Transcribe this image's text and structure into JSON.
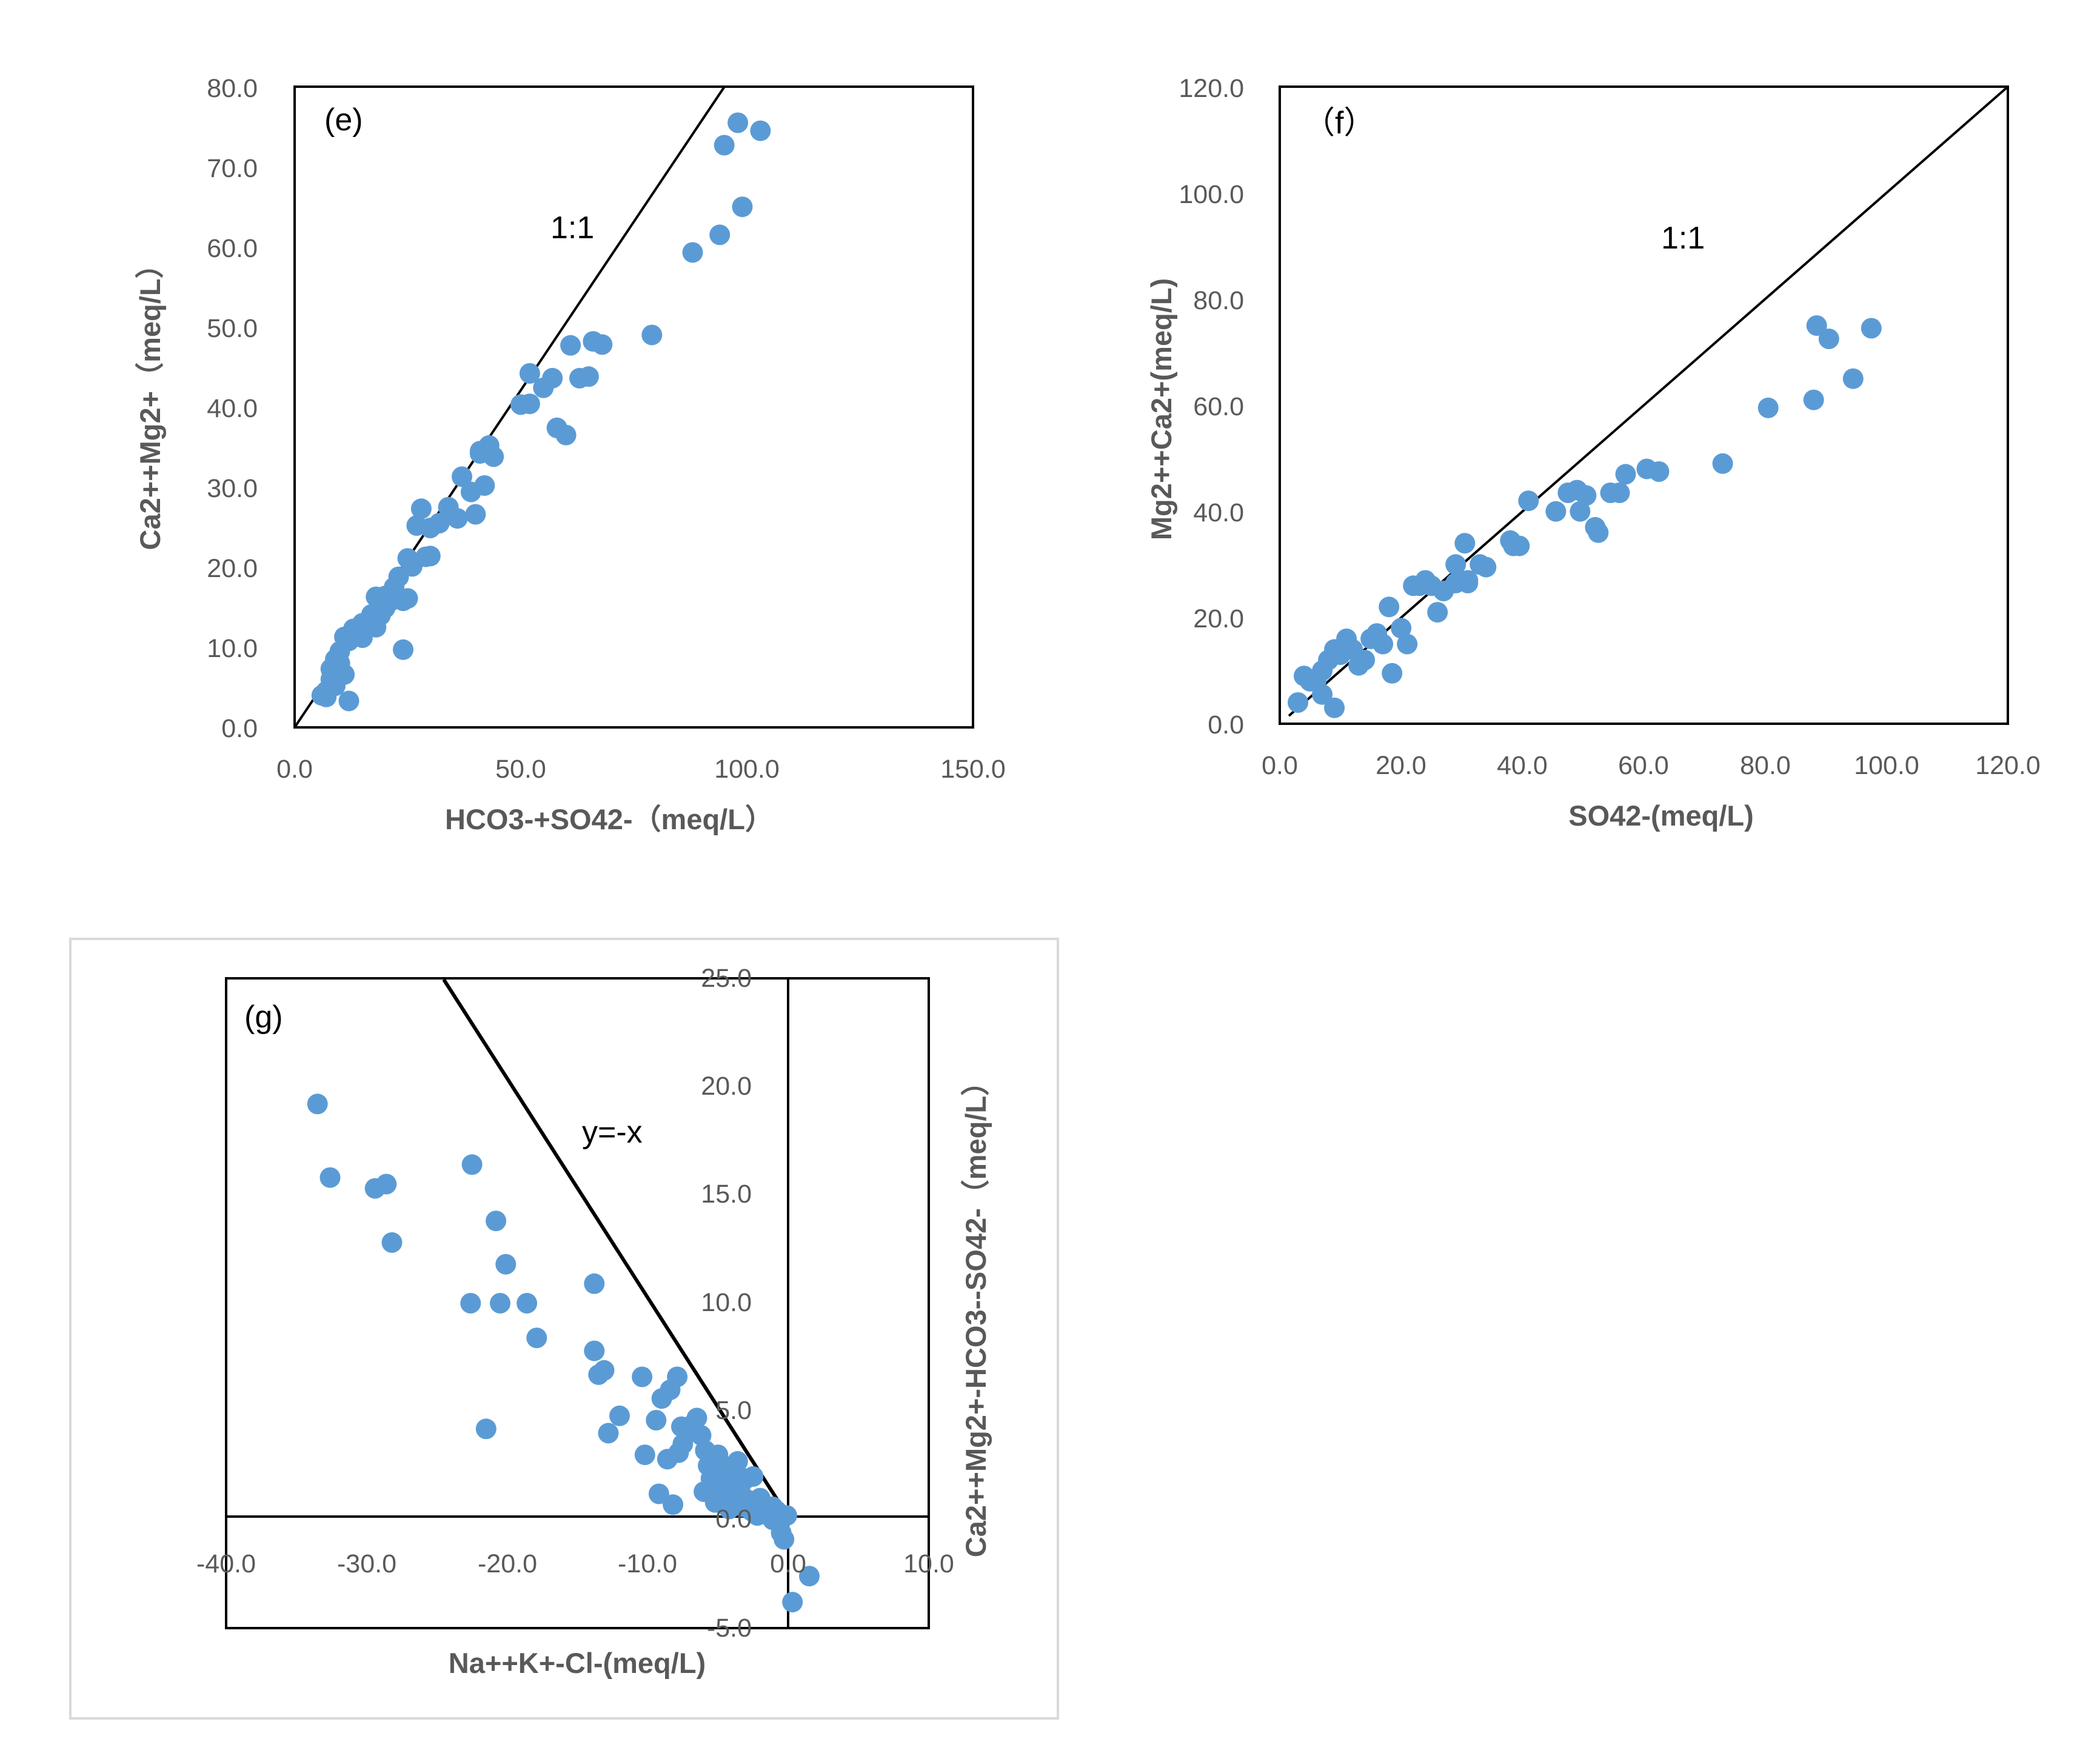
{
  "colors": {
    "point": "#5b9bd5",
    "axis": "#000000",
    "tick_text": "#595959",
    "frame": "#d9d9d9"
  },
  "chart_data": [
    {
      "id": "e",
      "type": "scatter",
      "panel_label": "(e)",
      "xlabel": "HCO3-+SO42-（meq/L）",
      "ylabel": "Ca2++Mg2+（meq/L）",
      "xlim": [
        0,
        150
      ],
      "ylim": [
        0,
        80
      ],
      "xticks": [
        "0.0",
        "50.0",
        "100.0",
        "150.0"
      ],
      "yticks": [
        "0.0",
        "10.0",
        "20.0",
        "30.0",
        "40.0",
        "50.0",
        "60.0",
        "70.0",
        "80.0"
      ],
      "reference_line": {
        "label": "1:1",
        "x": [
          0,
          95
        ],
        "y": [
          0,
          80
        ]
      },
      "x": [
        98,
        103,
        95,
        99,
        94,
        88,
        79,
        61,
        66,
        68,
        52,
        55,
        57,
        58,
        63,
        65,
        58,
        60,
        50,
        52,
        41,
        43,
        44,
        37,
        39,
        42,
        40,
        41,
        36,
        34,
        30,
        32,
        28,
        29,
        30,
        27,
        25,
        26,
        24,
        22,
        23,
        20,
        18,
        19,
        17,
        15,
        14,
        13,
        12,
        10,
        11,
        9,
        8,
        8,
        7,
        6,
        7,
        9,
        12,
        24,
        15,
        18,
        21,
        19,
        10,
        11,
        25,
        13,
        16,
        20,
        22
      ],
      "y": [
        75.5,
        74.5,
        72.7,
        65,
        61.5,
        59.3,
        49,
        47.7,
        48.2,
        47.8,
        44.2,
        42.4,
        43.6,
        37.4,
        43.6,
        43.8,
        37.4,
        36.5,
        40.3,
        40.4,
        34.2,
        35.2,
        33.8,
        31.3,
        29.4,
        30.2,
        26.6,
        34.5,
        26.1,
        27.5,
        24.9,
        25.5,
        27.3,
        21.3,
        21.4,
        25.2,
        21.1,
        20.1,
        15.8,
        17.5,
        18.8,
        16.4,
        16.3,
        15.3,
        14.1,
        13,
        12.2,
        11.4,
        10.8,
        9.5,
        11.3,
        8.5,
        7.3,
        6,
        4.5,
        4,
        3.8,
        5.2,
        3.3,
        9.7,
        11.2,
        12.5,
        15.7,
        14,
        8,
        6.6,
        16.1,
        12.3,
        13.2,
        14.9,
        17
      ]
    },
    {
      "id": "f",
      "type": "scatter",
      "panel_label": "（f）",
      "xlabel": "SO42-(meq/L)",
      "ylabel": "Mg2++Ca2+(meq/L)",
      "xlim": [
        0,
        120
      ],
      "ylim": [
        0,
        120
      ],
      "xticks": [
        "0.0",
        "20.0",
        "40.0",
        "60.0",
        "80.0",
        "100.0",
        "120.0"
      ],
      "yticks": [
        "0.0",
        "20.0",
        "40.0",
        "60.0",
        "80.0",
        "100.0",
        "120.0"
      ],
      "reference_line": {
        "label": "1:1",
        "x": [
          1.5,
          120
        ],
        "y": [
          1.5,
          120
        ]
      },
      "x": [
        88.5,
        97.5,
        90.5,
        94.5,
        88,
        80.5,
        73,
        60.5,
        62.5,
        57,
        41,
        47.5,
        49,
        50.5,
        45.5,
        49.5,
        52,
        52.5,
        54.5,
        56,
        38,
        39.5,
        38.5,
        30.5,
        33,
        34,
        29,
        31,
        27,
        24,
        22,
        23,
        21,
        26,
        25,
        18,
        18.5,
        16,
        15,
        14,
        12,
        11,
        10,
        9,
        8,
        7,
        6,
        5,
        4,
        3,
        9,
        7,
        20,
        17,
        13,
        29,
        31
      ],
      "y": [
        75,
        74.5,
        72.5,
        65,
        61,
        59.5,
        49,
        48,
        47.5,
        47,
        42,
        43.5,
        44,
        43,
        40,
        40,
        37,
        36,
        43.5,
        43.5,
        34.5,
        33.5,
        33.5,
        34,
        30,
        29.5,
        30,
        26.5,
        25,
        27,
        26,
        26,
        15,
        21,
        26,
        22,
        9.5,
        17,
        16,
        12,
        14,
        16,
        13,
        14,
        12,
        10,
        8,
        8,
        9,
        4,
        3,
        5.5,
        18,
        15,
        11,
        26.5,
        27
      ]
    },
    {
      "id": "g",
      "type": "scatter",
      "panel_label": "(g)",
      "xlabel": "Na++K+-Cl-(meq/L)",
      "ylabel": "Ca2++Mg2+-HCO3--SO42-（meq/L）",
      "xlim": [
        -40,
        10
      ],
      "ylim": [
        -5,
        25
      ],
      "xticks": [
        "-40.0",
        "-30.0",
        "-20.0",
        "-10.0",
        "0.0",
        "10.0"
      ],
      "yticks": [
        "-5.0",
        "0.0",
        "5.0",
        "10.0",
        "15.0",
        "20.0",
        "25.0"
      ],
      "reference_line": {
        "label": "y=-x",
        "x": [
          -24.5,
          0
        ],
        "y": [
          24.5,
          0
        ]
      },
      "x": [
        -33.5,
        -32.6,
        -29.4,
        -28.6,
        -28.2,
        -22.5,
        -20.8,
        -20.1,
        -22.6,
        -20.5,
        -18.6,
        -17.9,
        -13.8,
        -13.8,
        -13.5,
        -13.1,
        -12.8,
        -12.0,
        -10.4,
        -10.2,
        -9.4,
        -9.0,
        -8.4,
        -7.9,
        -7.6,
        -7.5,
        -8.6,
        -7.1,
        -6.8,
        -6.5,
        -6.2,
        -5.9,
        -5.7,
        -5.5,
        -5.2,
        -5.0,
        -4.8,
        -4.6,
        -4.4,
        -4.2,
        -4.0,
        -3.8,
        -3.6,
        -3.4,
        -3.2,
        -3.0,
        -2.8,
        -2.5,
        -2.2,
        -2.0,
        -1.7,
        -1.4,
        -1.1,
        -0.8,
        -0.5,
        -0.3,
        -0.1,
        0.3,
        1.5,
        -8.2,
        -7.8,
        -21.5,
        -9.2,
        -6.0,
        -5.2,
        -4.2,
        -3.5,
        -2.6,
        -2.0,
        -1.5,
        -1.1
      ],
      "y": [
        19.2,
        15.8,
        15.3,
        15.5,
        12.8,
        16.4,
        13.8,
        11.8,
        10.0,
        10.0,
        10.0,
        8.4,
        7.8,
        10.9,
        6.7,
        6.9,
        4.0,
        4.8,
        6.6,
        3.0,
        4.6,
        5.6,
        6.0,
        6.6,
        4.3,
        3.5,
        2.8,
        4.1,
        4.4,
        4.7,
        3.9,
        3.2,
        2.5,
        1.9,
        1.6,
        3.0,
        2.6,
        2.2,
        1.4,
        2.0,
        1.6,
        1.0,
        2.7,
        1.3,
        0.6,
        1.9,
        0.9,
        2.0,
        0.2,
        1.0,
        0.5,
        0.2,
        0.0,
        0.4,
        -0.6,
        -0.9,
        0.2,
        -3.8,
        -2.6,
        0.7,
        3.1,
        4.2,
        1.2,
        1.3,
        0.8,
        0.5,
        0.9,
        0.4,
        0.8,
        0.3,
        0.6
      ]
    }
  ]
}
